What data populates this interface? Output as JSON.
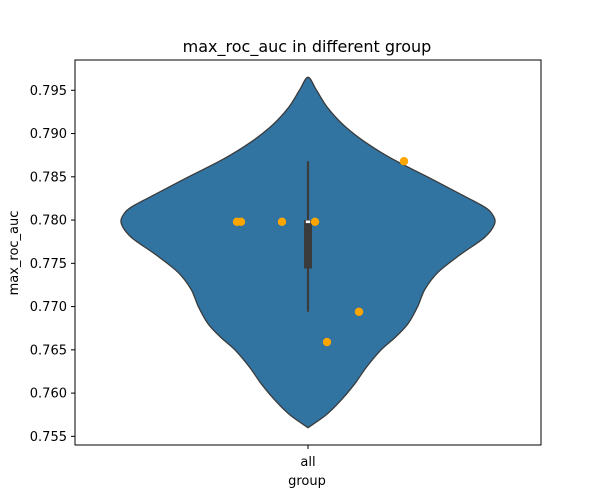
{
  "chart_data": {
    "type": "violin",
    "title": "max_roc_auc in different group",
    "xlabel": "group",
    "ylabel": "max_roc_auc",
    "categories": [
      "all"
    ],
    "ylim": [
      0.754,
      0.7985
    ],
    "yticks": [
      0.755,
      0.76,
      0.765,
      0.77,
      0.775,
      0.78,
      0.785,
      0.79,
      0.795
    ],
    "ytick_labels": [
      "0.755",
      "0.760",
      "0.765",
      "0.770",
      "0.775",
      "0.780",
      "0.785",
      "0.790",
      "0.795"
    ],
    "violin_color": "#3274a1",
    "outline_color": "#3b3b3b",
    "point_color": "#ffa500",
    "points": [
      {
        "category": "all",
        "value": 0.7798
      },
      {
        "category": "all",
        "value": 0.7798
      },
      {
        "category": "all",
        "value": 0.7798
      },
      {
        "category": "all",
        "value": 0.7798
      },
      {
        "category": "all",
        "value": 0.7868
      },
      {
        "category": "all",
        "value": 0.7694
      },
      {
        "category": "all",
        "value": 0.7659
      }
    ],
    "box": {
      "whisker_low": 0.7694,
      "q1": 0.7744,
      "median": 0.7798,
      "q3": 0.78,
      "whisker_high": 0.7868
    },
    "density": [
      [
        0.756,
        0.0
      ],
      [
        0.7575,
        0.15
      ],
      [
        0.759,
        0.26
      ],
      [
        0.761,
        0.38
      ],
      [
        0.763,
        0.48
      ],
      [
        0.765,
        0.6
      ],
      [
        0.7665,
        0.72
      ],
      [
        0.768,
        0.82
      ],
      [
        0.77,
        0.9
      ],
      [
        0.772,
        0.96
      ],
      [
        0.774,
        1.07
      ],
      [
        0.776,
        1.25
      ],
      [
        0.778,
        1.45
      ],
      [
        0.7795,
        1.53
      ],
      [
        0.7805,
        1.52
      ],
      [
        0.7815,
        1.45
      ],
      [
        0.783,
        1.25
      ],
      [
        0.785,
        0.98
      ],
      [
        0.787,
        0.7
      ],
      [
        0.789,
        0.47
      ],
      [
        0.791,
        0.29
      ],
      [
        0.793,
        0.16
      ],
      [
        0.795,
        0.07
      ],
      [
        0.7965,
        0.0
      ]
    ]
  }
}
